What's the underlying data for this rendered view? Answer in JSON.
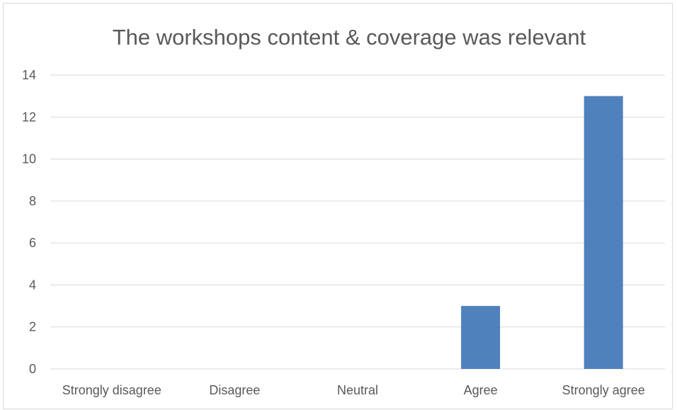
{
  "chart_data": {
    "type": "bar",
    "title": "The workshops content & coverage was relevant",
    "xlabel": "",
    "ylabel": "",
    "categories": [
      "Strongly disagree",
      "Disagree",
      "Neutral",
      "Agree",
      "Strongly agree"
    ],
    "values": [
      0,
      0,
      0,
      3,
      13
    ],
    "ylim": [
      0,
      14
    ],
    "yticks": [
      0,
      2,
      4,
      6,
      8,
      10,
      12,
      14
    ],
    "grid": true,
    "legend": "none",
    "bar_color": "#4f81bd"
  }
}
